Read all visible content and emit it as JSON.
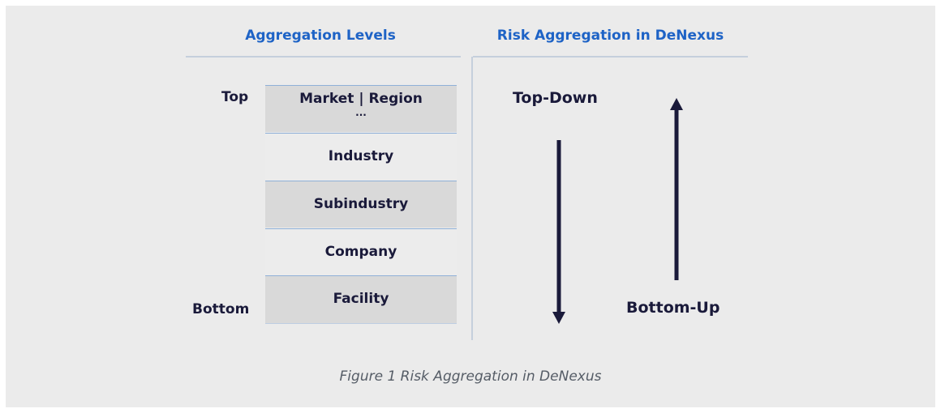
{
  "left_header": "Aggregation Levels",
  "right_header": "Risk Aggregation in DeNexus",
  "labels": {
    "top": "Top",
    "bottom": "Bottom"
  },
  "levels": [
    "Market | Region",
    "Industry",
    "Subindustry",
    "Company",
    "Facility"
  ],
  "ellipsis": "...",
  "directions": {
    "top_down": "Top-Down",
    "bottom_up": "Bottom-Up"
  },
  "caption": "Figure 1 Risk Aggregation in DeNexus"
}
